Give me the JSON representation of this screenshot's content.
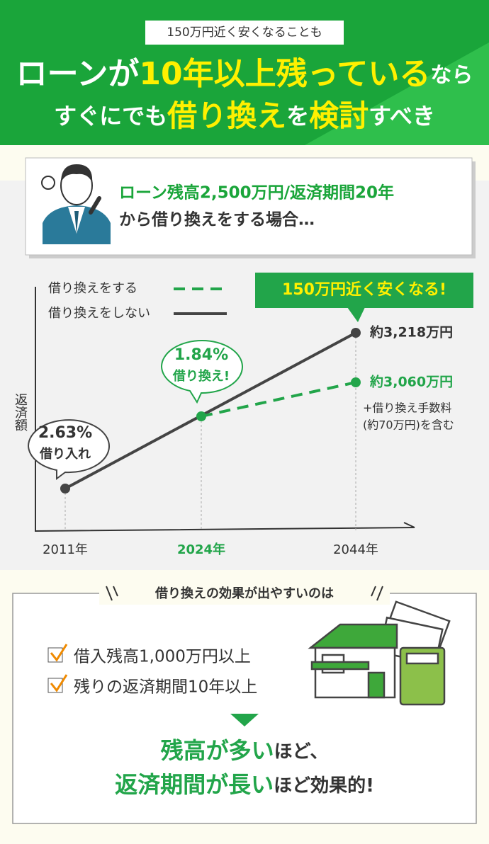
{
  "header": {
    "badge": "150万円近く安くなることも",
    "line1": [
      "ローンが",
      "10年以上残っている",
      "なら"
    ],
    "line2": [
      "すぐにでも",
      "借り換え",
      "を",
      "検討",
      "すべき"
    ]
  },
  "scenario": {
    "line1": "ローン残高2,500万円/返済期間20年",
    "line2": "から借り換えをする場合…"
  },
  "chart": {
    "legend": [
      "借り換えをする",
      "借り換えをしない"
    ],
    "callout": "150万円近く安くなる!",
    "y_label": "返済額",
    "bubble1": [
      "2.63%",
      "借り入れ"
    ],
    "bubble2": [
      "1.84%",
      "借り換え!"
    ],
    "end_no_refi": "約3,218万円",
    "end_refi": "約3,060万円",
    "note": [
      "+借り換え手数料",
      "(約70万円)を含む"
    ],
    "x_labels": [
      "2011年",
      "2024年",
      "2044年"
    ]
  },
  "bottom": {
    "heading": "借り換えの効果が出やすいのは",
    "checks": [
      "借入残高1,000万円以上",
      "残りの返済期間10年以上"
    ],
    "conclusion1": [
      "残高が多い",
      "ほど、"
    ],
    "conclusion2": [
      "返済期間が長い",
      "ほど効果的!"
    ]
  }
}
